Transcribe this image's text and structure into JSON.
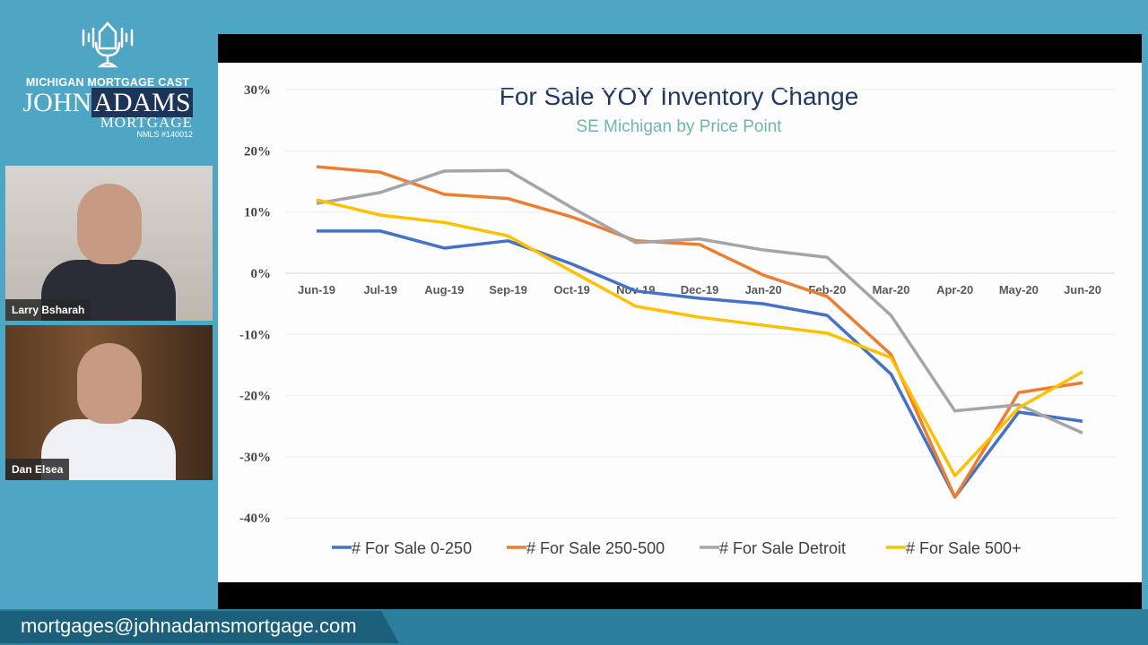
{
  "brand": {
    "cast": "MICHIGAN MORTGAGE CAST",
    "logo_john": "JOHN",
    "logo_adams": "ADAMS",
    "logo_mortgage": "MORTGAGE",
    "nmls": "NMLS #140012"
  },
  "participants": [
    {
      "name": "Larry Bsharah"
    },
    {
      "name": "Dan Elsea"
    }
  ],
  "footer": {
    "email": "mortgages@johnadamsmortgage.com"
  },
  "chart_data": {
    "type": "line",
    "title": "For Sale YOY Inventory Change",
    "subtitle": "SE Michigan by Price Point",
    "categories": [
      "Jun-19",
      "Jul-19",
      "Aug-19",
      "Sep-19",
      "Oct-19",
      "Nov-19",
      "Dec-19",
      "Jan-20",
      "Feb-20",
      "Mar-20",
      "Apr-20",
      "May-20",
      "Jun-20"
    ],
    "y_ticks": [
      "30%",
      "20%",
      "10%",
      "0%",
      "-10%",
      "-20%",
      "-30%",
      "-40%"
    ],
    "ylim": [
      -40,
      30
    ],
    "grid": true,
    "legend": "bottom",
    "series": [
      {
        "name": "# For Sale 0-250",
        "color": "#4472c4",
        "values": [
          6.9,
          6.9,
          4.1,
          5.3,
          1.5,
          -2.9,
          -4.1,
          -5.0,
          -6.9,
          -16.5,
          -36.6,
          -22.7,
          -24.2
        ]
      },
      {
        "name": "# For Sale 250-500",
        "color": "#ed7d31",
        "values": [
          17.4,
          16.5,
          12.9,
          12.2,
          9.2,
          5.3,
          4.7,
          -0.3,
          -3.8,
          -13.3,
          -36.6,
          -19.5,
          -17.9
        ]
      },
      {
        "name": "# For Sale Detroit",
        "color": "#a5a5a5",
        "values": [
          11.4,
          13.2,
          16.7,
          16.8,
          10.7,
          5.0,
          5.6,
          3.8,
          2.6,
          -6.9,
          -22.5,
          -21.5,
          -26.1
        ]
      },
      {
        "name": "# For Sale 500+",
        "color": "#ffc000",
        "values": [
          12.0,
          9.5,
          8.3,
          6.1,
          0.3,
          -5.4,
          -7.2,
          -8.5,
          -9.8,
          -13.8,
          -33.1,
          -22.0,
          -16.1
        ]
      }
    ]
  }
}
